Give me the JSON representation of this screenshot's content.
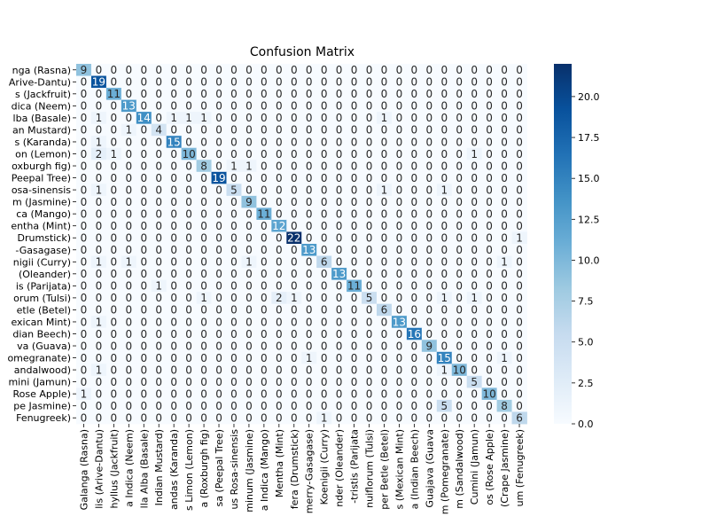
{
  "chart_data": {
    "type": "heatmap",
    "title": "Confusion Matrix",
    "y_tick_labels": [
      "nga (Rasna)",
      "Arive-Dantu)",
      "s (Jackfruit)",
      "dica (Neem)",
      "lba (Basale)",
      "an Mustard)",
      "s (Karanda)",
      "on (Lemon)",
      "oxburgh fig)",
      "Peepal Tree)",
      "osa-sinensis",
      "m (Jasmine)",
      "ca (Mango)",
      "entha (Mint)",
      "Drumstick)",
      "-Gasagase)",
      "nigii (Curry)",
      "(Oleander)",
      "is (Parijata)",
      "orum (Tulsi)",
      "etle (Betel)",
      "exican Mint)",
      "dian Beech)",
      "va (Guava)",
      "omegranate)",
      "andalwood)",
      "mini (Jamun)",
      "Rose Apple)",
      "pe Jasmine)",
      "Fenugreek)"
    ],
    "x_tick_labels": [
      "Galanga (Rasna)",
      "lis (Arive-Dantu)",
      "hyllus (Jackfruit)",
      "a Indica (Neem)",
      "lla Alba (Basale)",
      "Indian Mustard)",
      "andas (Karanda)",
      "s Limon (Lemon)",
      "a (Roxburgh fig)",
      "sa (Peepal Tree)",
      "us Rosa-sinensis",
      "minum (Jasmine)",
      "a Indica (Mango)",
      "Mentha (Mint)",
      "fera (Drumstick)",
      "merry-Gasagase)",
      "Koenigii (Curry)",
      "nder (Oleander)",
      "-tristis (Parijata",
      "nuiflorum (Tulsi)",
      "per Betle (Betel)",
      "s (Mexican Mint)",
      "a (Indian Beech)",
      "Guajava (Guava",
      "m (Pomegranate)",
      "m (Sandalwood)",
      "Cumini (Jamun)",
      "os (Rose Apple)",
      "(Crape Jasmine)",
      "um (Fenugreek)"
    ],
    "matrix": [
      [
        9,
        0,
        0,
        0,
        0,
        0,
        0,
        0,
        0,
        0,
        0,
        0,
        0,
        0,
        0,
        0,
        0,
        0,
        0,
        0,
        0,
        0,
        0,
        0,
        0,
        0,
        0,
        0,
        0,
        0
      ],
      [
        0,
        19,
        0,
        0,
        0,
        0,
        0,
        0,
        0,
        0,
        0,
        0,
        0,
        0,
        0,
        0,
        0,
        0,
        0,
        0,
        0,
        0,
        0,
        0,
        0,
        0,
        0,
        0,
        0,
        0
      ],
      [
        0,
        0,
        11,
        0,
        0,
        0,
        0,
        0,
        0,
        0,
        0,
        0,
        0,
        0,
        0,
        0,
        0,
        0,
        0,
        0,
        0,
        0,
        0,
        0,
        0,
        0,
        0,
        0,
        0,
        0
      ],
      [
        0,
        0,
        0,
        13,
        0,
        0,
        0,
        0,
        0,
        0,
        0,
        0,
        0,
        0,
        0,
        0,
        0,
        0,
        0,
        0,
        0,
        0,
        0,
        0,
        0,
        0,
        0,
        0,
        0,
        0
      ],
      [
        0,
        1,
        0,
        0,
        14,
        0,
        1,
        1,
        1,
        0,
        0,
        0,
        0,
        0,
        0,
        0,
        0,
        0,
        0,
        0,
        1,
        0,
        0,
        0,
        0,
        0,
        0,
        0,
        0,
        0
      ],
      [
        0,
        0,
        0,
        1,
        0,
        4,
        0,
        0,
        0,
        0,
        0,
        0,
        0,
        0,
        0,
        0,
        0,
        0,
        0,
        0,
        0,
        0,
        0,
        0,
        0,
        0,
        0,
        0,
        0,
        0
      ],
      [
        0,
        1,
        0,
        0,
        0,
        0,
        15,
        0,
        0,
        0,
        0,
        0,
        0,
        0,
        0,
        0,
        0,
        0,
        0,
        0,
        0,
        0,
        0,
        0,
        0,
        0,
        0,
        0,
        0,
        0
      ],
      [
        0,
        2,
        1,
        0,
        0,
        0,
        0,
        10,
        0,
        0,
        0,
        0,
        0,
        0,
        0,
        0,
        0,
        0,
        0,
        0,
        0,
        0,
        0,
        0,
        0,
        0,
        1,
        0,
        0,
        0
      ],
      [
        0,
        0,
        0,
        0,
        0,
        0,
        0,
        0,
        8,
        0,
        1,
        1,
        0,
        0,
        0,
        0,
        0,
        0,
        0,
        0,
        0,
        0,
        0,
        0,
        0,
        0,
        0,
        0,
        0,
        0
      ],
      [
        0,
        0,
        0,
        0,
        0,
        0,
        0,
        0,
        0,
        19,
        0,
        0,
        0,
        0,
        0,
        0,
        0,
        0,
        0,
        0,
        0,
        0,
        0,
        0,
        0,
        0,
        0,
        0,
        0,
        0
      ],
      [
        0,
        1,
        0,
        0,
        0,
        0,
        0,
        0,
        0,
        0,
        5,
        0,
        0,
        0,
        0,
        0,
        0,
        0,
        0,
        0,
        1,
        0,
        0,
        0,
        1,
        0,
        0,
        0,
        0,
        0
      ],
      [
        0,
        0,
        0,
        0,
        0,
        0,
        0,
        0,
        0,
        0,
        0,
        9,
        0,
        0,
        0,
        0,
        0,
        0,
        0,
        0,
        0,
        0,
        0,
        0,
        0,
        0,
        0,
        0,
        0,
        0
      ],
      [
        0,
        0,
        0,
        0,
        0,
        0,
        0,
        0,
        0,
        0,
        0,
        0,
        11,
        0,
        0,
        0,
        0,
        0,
        0,
        0,
        0,
        0,
        0,
        0,
        0,
        0,
        0,
        0,
        0,
        0
      ],
      [
        0,
        0,
        0,
        0,
        0,
        0,
        0,
        0,
        0,
        0,
        0,
        0,
        0,
        12,
        0,
        0,
        0,
        0,
        0,
        0,
        0,
        0,
        0,
        0,
        0,
        0,
        0,
        0,
        0,
        0
      ],
      [
        0,
        0,
        0,
        0,
        0,
        0,
        0,
        0,
        0,
        0,
        0,
        0,
        0,
        0,
        22,
        0,
        0,
        0,
        0,
        0,
        0,
        0,
        0,
        0,
        0,
        0,
        0,
        0,
        0,
        1
      ],
      [
        0,
        0,
        0,
        0,
        0,
        0,
        0,
        0,
        0,
        0,
        0,
        0,
        0,
        0,
        0,
        13,
        0,
        0,
        0,
        0,
        0,
        0,
        0,
        0,
        0,
        0,
        0,
        0,
        0,
        0
      ],
      [
        0,
        1,
        0,
        1,
        0,
        0,
        0,
        0,
        0,
        0,
        0,
        1,
        0,
        0,
        0,
        0,
        6,
        0,
        0,
        0,
        0,
        0,
        0,
        0,
        0,
        0,
        0,
        0,
        1,
        0
      ],
      [
        0,
        0,
        0,
        0,
        0,
        0,
        0,
        0,
        0,
        0,
        0,
        0,
        0,
        0,
        0,
        0,
        0,
        13,
        0,
        0,
        0,
        0,
        0,
        0,
        0,
        0,
        0,
        0,
        0,
        0
      ],
      [
        0,
        0,
        0,
        0,
        0,
        1,
        0,
        0,
        0,
        0,
        0,
        0,
        0,
        0,
        0,
        0,
        0,
        0,
        11,
        0,
        0,
        0,
        0,
        0,
        0,
        0,
        0,
        0,
        0,
        0
      ],
      [
        0,
        0,
        0,
        0,
        0,
        0,
        0,
        0,
        1,
        0,
        0,
        0,
        0,
        2,
        1,
        0,
        0,
        0,
        0,
        5,
        0,
        0,
        0,
        0,
        1,
        0,
        1,
        0,
        0,
        0
      ],
      [
        0,
        0,
        0,
        0,
        0,
        0,
        0,
        0,
        0,
        0,
        0,
        0,
        0,
        0,
        0,
        0,
        0,
        0,
        0,
        0,
        6,
        0,
        0,
        0,
        0,
        0,
        0,
        0,
        0,
        0
      ],
      [
        0,
        1,
        0,
        0,
        0,
        0,
        0,
        0,
        0,
        0,
        0,
        0,
        0,
        0,
        0,
        0,
        0,
        0,
        0,
        0,
        0,
        13,
        0,
        0,
        0,
        0,
        0,
        0,
        0,
        0
      ],
      [
        0,
        0,
        0,
        0,
        0,
        0,
        0,
        0,
        0,
        0,
        0,
        0,
        0,
        0,
        0,
        0,
        0,
        0,
        0,
        0,
        0,
        0,
        16,
        0,
        0,
        0,
        0,
        0,
        0,
        0
      ],
      [
        0,
        0,
        0,
        0,
        0,
        0,
        0,
        0,
        0,
        0,
        0,
        0,
        0,
        0,
        0,
        0,
        0,
        0,
        0,
        0,
        0,
        0,
        0,
        9,
        0,
        0,
        0,
        0,
        0,
        0
      ],
      [
        0,
        0,
        0,
        0,
        0,
        0,
        0,
        0,
        0,
        0,
        0,
        0,
        0,
        0,
        0,
        1,
        0,
        0,
        0,
        0,
        0,
        0,
        0,
        0,
        15,
        0,
        0,
        0,
        1,
        0
      ],
      [
        0,
        1,
        0,
        0,
        0,
        0,
        0,
        0,
        0,
        0,
        0,
        0,
        0,
        0,
        0,
        0,
        0,
        0,
        0,
        0,
        0,
        0,
        0,
        0,
        1,
        10,
        0,
        0,
        0,
        0
      ],
      [
        0,
        0,
        0,
        0,
        0,
        0,
        0,
        0,
        0,
        0,
        0,
        0,
        0,
        0,
        0,
        0,
        0,
        0,
        0,
        0,
        0,
        0,
        0,
        0,
        0,
        0,
        5,
        0,
        0,
        0
      ],
      [
        1,
        0,
        0,
        0,
        0,
        0,
        0,
        0,
        0,
        0,
        0,
        0,
        0,
        0,
        0,
        0,
        0,
        0,
        0,
        0,
        0,
        0,
        0,
        0,
        0,
        0,
        0,
        10,
        0,
        0
      ],
      [
        0,
        0,
        0,
        0,
        0,
        0,
        0,
        0,
        0,
        0,
        0,
        0,
        0,
        0,
        0,
        0,
        0,
        0,
        0,
        0,
        0,
        0,
        0,
        0,
        5,
        0,
        0,
        0,
        8,
        0
      ],
      [
        0,
        0,
        0,
        0,
        0,
        0,
        0,
        0,
        0,
        0,
        0,
        0,
        0,
        0,
        0,
        0,
        1,
        0,
        0,
        0,
        0,
        0,
        0,
        0,
        0,
        0,
        0,
        0,
        0,
        6
      ]
    ],
    "color_range": [
      0,
      22
    ],
    "colormap": "Blues",
    "colormap_stops": [
      "#f7fbff",
      "#deebf7",
      "#c6dbef",
      "#9ecae1",
      "#6baed6",
      "#4292c6",
      "#2171b5",
      "#08519c",
      "#08306b"
    ],
    "colorbar_ticks": [
      "0.0",
      "2.5",
      "5.0",
      "7.5",
      "10.0",
      "12.5",
      "15.0",
      "17.5",
      "20.0"
    ],
    "colorbar_tick_values": [
      0,
      2.5,
      5,
      7.5,
      10,
      12.5,
      15,
      17.5,
      20
    ],
    "legend": "colorbar-right",
    "grid": false
  }
}
